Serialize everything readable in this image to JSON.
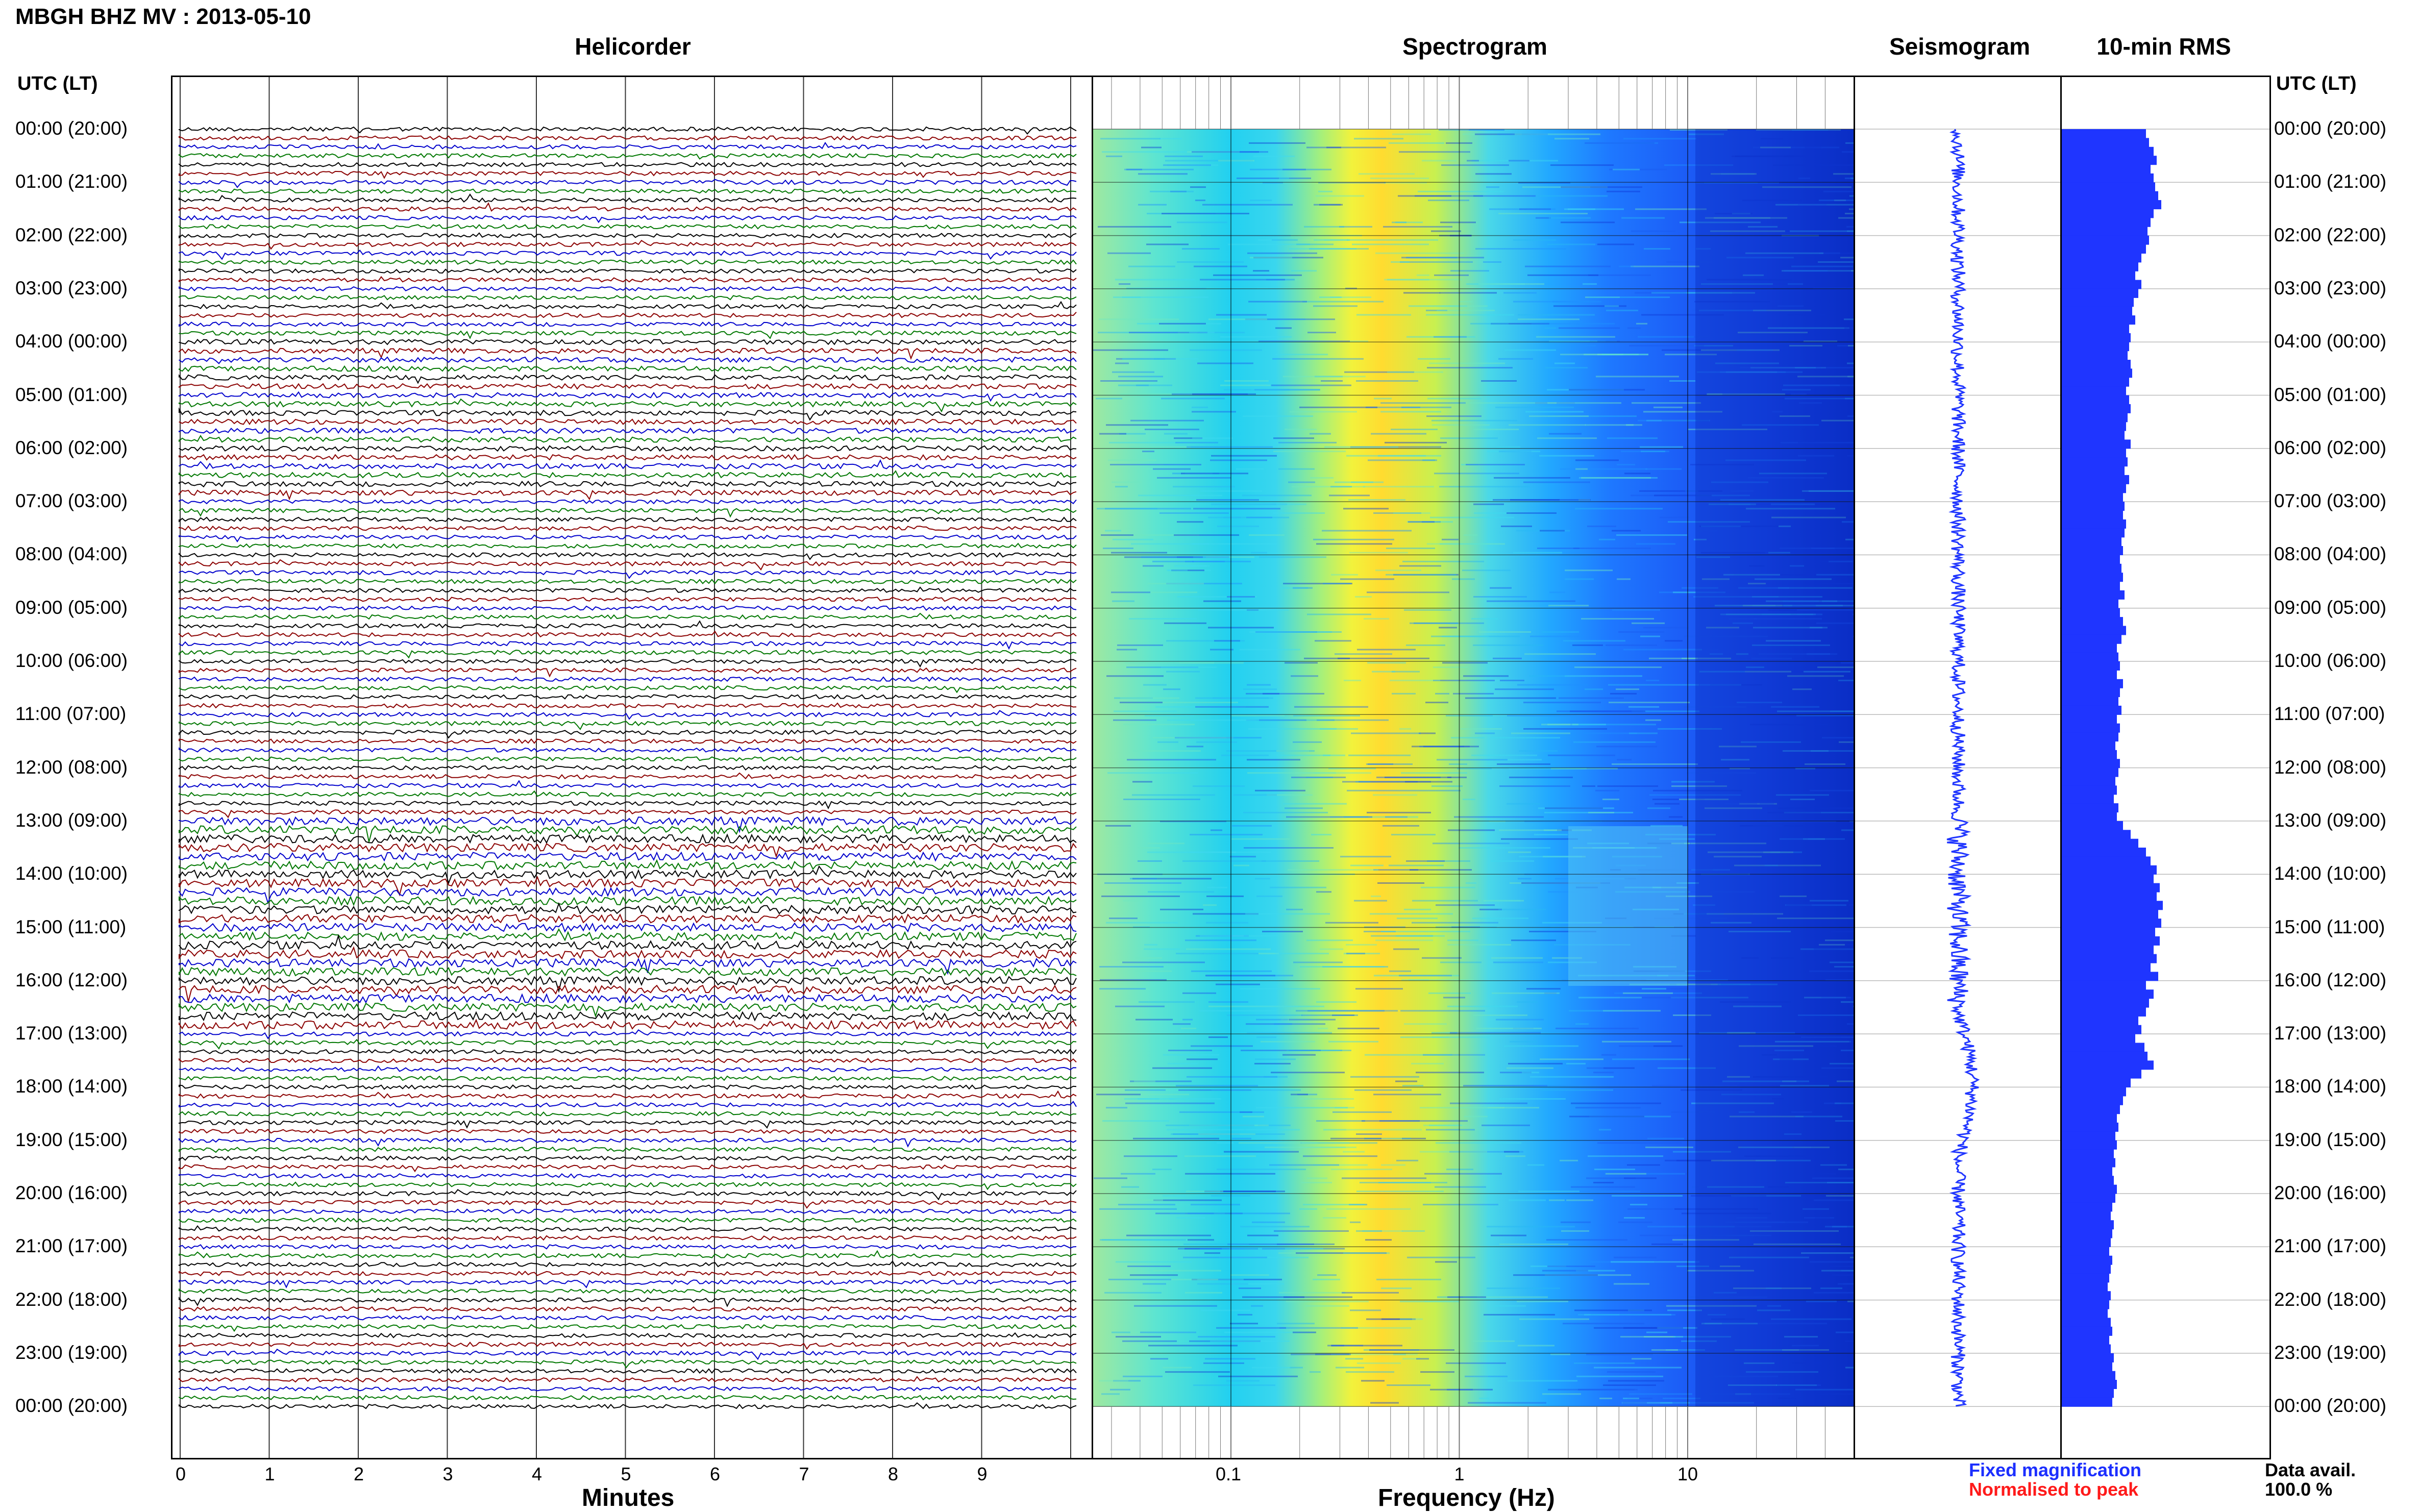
{
  "header": {
    "title": "MBGH BHZ MV : 2013-05-10"
  },
  "panels": {
    "helicorder": "Helicorder",
    "spectrogram": "Spectrogram",
    "seismogram": "Seismogram",
    "rms": "10-min RMS"
  },
  "axis": {
    "utc_label_left": "UTC (LT)",
    "utc_label_right": "UTC (LT)",
    "minutes_label": "Minutes",
    "frequency_label": "Frequency (Hz)"
  },
  "time_labels": [
    "00:00 (20:00)",
    "01:00 (21:00)",
    "02:00 (22:00)",
    "03:00 (23:00)",
    "04:00 (00:00)",
    "05:00 (01:00)",
    "06:00 (02:00)",
    "07:00 (03:00)",
    "08:00 (04:00)",
    "09:00 (05:00)",
    "10:00 (06:00)",
    "11:00 (07:00)",
    "12:00 (08:00)",
    "13:00 (09:00)",
    "14:00 (10:00)",
    "15:00 (11:00)",
    "16:00 (12:00)",
    "17:00 (13:00)",
    "18:00 (14:00)",
    "19:00 (15:00)",
    "20:00 (16:00)",
    "21:00 (17:00)",
    "22:00 (18:00)",
    "23:00 (19:00)",
    "00:00 (20:00)"
  ],
  "minute_ticks": [
    "0",
    "1",
    "2",
    "3",
    "4",
    "5",
    "6",
    "7",
    "8",
    "9"
  ],
  "freq_ticks": [
    "0.1",
    "1",
    "10"
  ],
  "legend": {
    "fixed": "Fixed magnification",
    "normalised": "Normalised to peak",
    "avail_label": "Data avail.",
    "avail_value": "100.0 %"
  },
  "colors": {
    "trace_cycle": [
      "#000000",
      "#8b0000",
      "#0000cc",
      "#007700"
    ],
    "seismogram": "#1f35ff",
    "rms_bars": "#1f35ff",
    "fixed_text": "#1c2fff",
    "normalised_text": "#ff1a1a"
  },
  "chart_data": [
    {
      "type": "heatmap",
      "name": "Helicorder",
      "x_axis": {
        "label": "Minutes",
        "range": [
          0,
          10
        ],
        "ticks": [
          0,
          1,
          2,
          3,
          4,
          5,
          6,
          7,
          8,
          9
        ]
      },
      "rows": 144,
      "row_duration_min": 10,
      "y_axis": "UTC (LT), 00:00 (20:00) to 00:00 (20:00)",
      "notes": "Elevated amplitudes between about 13:00 and 17:00 UTC"
    },
    {
      "type": "heatmap",
      "name": "Spectrogram",
      "x_axis": {
        "label": "Frequency (Hz)",
        "scale": "log",
        "range": [
          0.02,
          50
        ],
        "ticks": [
          0.1,
          1,
          10
        ]
      },
      "y_axis": "UTC (LT)",
      "colormap": [
        "#003cdc",
        "#1e6cff",
        "#19c8ff",
        "#7cf7b0",
        "#f5f53c",
        "#ffd21e"
      ],
      "notes": "Peak energy near 0.2-0.5 Hz; broadband band 3-10 Hz between 13:00 and 16:00 UTC"
    },
    {
      "type": "line",
      "name": "Seismogram",
      "y_axis": "UTC (LT)",
      "notes": "Centered trace with low-frequency excursion near 17:00-19:00 UTC"
    },
    {
      "type": "bar",
      "name": "10-min RMS",
      "orientation": "horizontal",
      "y_axis": "UTC (LT)",
      "values": [
        0.55,
        0.57,
        0.6,
        0.62,
        0.58,
        0.6,
        0.61,
        0.63,
        0.65,
        0.6,
        0.58,
        0.56,
        0.57,
        0.55,
        0.52,
        0.5,
        0.48,
        0.52,
        0.5,
        0.47,
        0.46,
        0.48,
        0.44,
        0.45,
        0.44,
        0.43,
        0.45,
        0.46,
        0.44,
        0.42,
        0.44,
        0.45,
        0.43,
        0.42,
        0.41,
        0.45,
        0.42,
        0.43,
        0.41,
        0.44,
        0.42,
        0.4,
        0.41,
        0.4,
        0.42,
        0.41,
        0.39,
        0.4,
        0.38,
        0.39,
        0.4,
        0.38,
        0.41,
        0.37,
        0.38,
        0.4,
        0.42,
        0.39,
        0.36,
        0.37,
        0.38,
        0.36,
        0.4,
        0.38,
        0.37,
        0.39,
        0.36,
        0.38,
        0.37,
        0.35,
        0.36,
        0.38,
        0.37,
        0.35,
        0.36,
        0.34,
        0.37,
        0.36,
        0.4,
        0.45,
        0.5,
        0.55,
        0.58,
        0.62,
        0.6,
        0.64,
        0.62,
        0.66,
        0.63,
        0.65,
        0.61,
        0.64,
        0.6,
        0.62,
        0.58,
        0.63,
        0.55,
        0.6,
        0.57,
        0.55,
        0.5,
        0.52,
        0.48,
        0.54,
        0.56,
        0.6,
        0.52,
        0.45,
        0.42,
        0.4,
        0.38,
        0.36,
        0.37,
        0.35,
        0.36,
        0.34,
        0.35,
        0.33,
        0.34,
        0.36,
        0.35,
        0.33,
        0.32,
        0.34,
        0.33,
        0.32,
        0.31,
        0.33,
        0.32,
        0.31,
        0.3,
        0.32,
        0.31,
        0.3,
        0.32,
        0.33,
        0.31,
        0.32,
        0.34,
        0.33,
        0.35,
        0.36,
        0.34,
        0.33
      ]
    }
  ]
}
